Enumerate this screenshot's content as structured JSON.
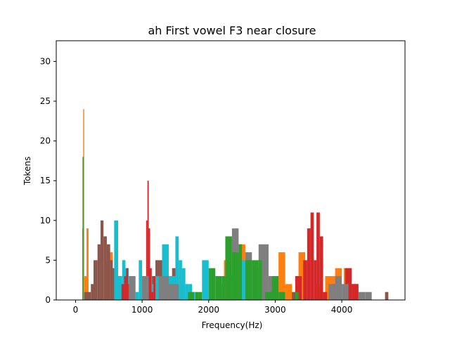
{
  "chart_data": {
    "type": "histogram",
    "title": "ah First vowel F3 near closure",
    "xlabel": "Frequency(Hz)",
    "ylabel": "Tokens",
    "xlim": [
      -290,
      4950
    ],
    "ylim": [
      0,
      32.6
    ],
    "xticks": [
      0,
      1000,
      2000,
      3000,
      4000
    ],
    "yticks": [
      0,
      5,
      10,
      15,
      20,
      25,
      30
    ],
    "grid": false,
    "legend": "none",
    "series": [
      {
        "color": "#ff7f0e",
        "bins": [
          [
            100,
            115,
            9
          ],
          [
            115,
            130,
            24
          ],
          [
            130,
            165,
            3
          ],
          [
            165,
            195,
            9
          ],
          [
            460,
            510,
            5
          ],
          [
            510,
            560,
            6
          ],
          [
            2150,
            2230,
            2
          ],
          [
            2230,
            2300,
            5
          ],
          [
            2450,
            2550,
            7
          ],
          [
            2700,
            2800,
            4
          ],
          [
            2950,
            3050,
            3
          ],
          [
            3050,
            3150,
            6
          ],
          [
            3150,
            3250,
            2
          ],
          [
            3350,
            3450,
            6
          ],
          [
            3600,
            3700,
            2
          ],
          [
            3750,
            3900,
            3
          ],
          [
            3900,
            4000,
            4
          ],
          [
            4030,
            4130,
            4
          ]
        ]
      },
      {
        "color": "#8c564b",
        "bins": [
          [
            130,
            180,
            1
          ],
          [
            180,
            230,
            1
          ],
          [
            230,
            270,
            2
          ],
          [
            270,
            330,
            5
          ],
          [
            330,
            375,
            7
          ],
          [
            375,
            420,
            10
          ],
          [
            420,
            470,
            8
          ],
          [
            470,
            520,
            7
          ],
          [
            520,
            560,
            5
          ],
          [
            560,
            600,
            4
          ],
          [
            600,
            640,
            2
          ],
          [
            640,
            690,
            3
          ],
          [
            690,
            740,
            1
          ],
          [
            1100,
            1200,
            3
          ],
          [
            1200,
            1300,
            5
          ],
          [
            1300,
            1400,
            3
          ],
          [
            1450,
            1550,
            4
          ],
          [
            1550,
            1650,
            2
          ],
          [
            3250,
            3350,
            1
          ],
          [
            4050,
            4150,
            2
          ],
          [
            4150,
            4250,
            2
          ],
          [
            4650,
            4700,
            1
          ]
        ]
      },
      {
        "color": "#17becf",
        "bins": [
          [
            580,
            640,
            10
          ],
          [
            640,
            700,
            3
          ],
          [
            700,
            750,
            5
          ],
          [
            750,
            800,
            4
          ],
          [
            800,
            850,
            2
          ],
          [
            850,
            900,
            3
          ],
          [
            900,
            950,
            1
          ],
          [
            950,
            1000,
            5
          ],
          [
            1000,
            1050,
            3
          ],
          [
            1050,
            1100,
            2
          ],
          [
            1100,
            1150,
            4
          ],
          [
            1150,
            1200,
            2
          ],
          [
            1200,
            1250,
            3
          ],
          [
            1250,
            1300,
            1
          ],
          [
            1300,
            1400,
            7
          ],
          [
            1400,
            1500,
            3
          ],
          [
            1500,
            1550,
            8
          ],
          [
            1550,
            1600,
            5
          ],
          [
            1600,
            1650,
            4
          ],
          [
            1650,
            1700,
            2
          ],
          [
            1700,
            1750,
            2
          ],
          [
            1750,
            1800,
            1
          ],
          [
            1900,
            2000,
            5
          ],
          [
            2300,
            2400,
            3
          ],
          [
            2450,
            2550,
            5
          ]
        ]
      },
      {
        "color": "#d62728",
        "bins": [
          [
            690,
            730,
            2
          ],
          [
            730,
            760,
            3
          ],
          [
            760,
            790,
            4
          ],
          [
            790,
            830,
            2
          ],
          [
            1060,
            1080,
            10
          ],
          [
            1080,
            1100,
            15
          ],
          [
            1100,
            1120,
            9
          ],
          [
            1120,
            1140,
            4
          ],
          [
            1140,
            1170,
            1
          ],
          [
            1170,
            1200,
            3
          ],
          [
            3300,
            3400,
            3
          ],
          [
            3420,
            3480,
            5
          ],
          [
            3480,
            3530,
            9
          ],
          [
            3530,
            3580,
            11
          ],
          [
            3580,
            3620,
            5
          ],
          [
            3620,
            3670,
            11
          ],
          [
            3670,
            3720,
            8
          ],
          [
            3720,
            3780,
            1
          ],
          [
            3850,
            3950,
            2
          ],
          [
            4050,
            4150,
            4
          ],
          [
            4150,
            4250,
            2
          ]
        ]
      },
      {
        "color": "#7f7f7f",
        "bins": [
          [
            800,
            900,
            3
          ],
          [
            1000,
            1100,
            3
          ],
          [
            1250,
            1400,
            3
          ],
          [
            1400,
            1550,
            2
          ],
          [
            2350,
            2450,
            9
          ],
          [
            2550,
            2650,
            6
          ],
          [
            2750,
            2900,
            7
          ],
          [
            2900,
            3000,
            3
          ],
          [
            3800,
            3900,
            2
          ],
          [
            3900,
            4000,
            3
          ],
          [
            4000,
            4100,
            2
          ],
          [
            4250,
            4350,
            1
          ],
          [
            4350,
            4450,
            1
          ]
        ]
      },
      {
        "color": "#2ca02c",
        "bins": [
          [
            105,
            120,
            18
          ],
          [
            1690,
            1780,
            1
          ],
          [
            1800,
            1850,
            1
          ],
          [
            1850,
            1900,
            1
          ],
          [
            2000,
            2100,
            4
          ],
          [
            2100,
            2200,
            3
          ],
          [
            2200,
            2250,
            3
          ],
          [
            2250,
            2350,
            8
          ],
          [
            2350,
            2450,
            6
          ],
          [
            2450,
            2500,
            7
          ],
          [
            2550,
            2650,
            5
          ],
          [
            2650,
            2750,
            5
          ],
          [
            2750,
            2800,
            5
          ],
          [
            2850,
            2950,
            1
          ],
          [
            2950,
            3050,
            3
          ],
          [
            3050,
            3150,
            1
          ],
          [
            3300,
            3350,
            1
          ]
        ]
      }
    ]
  }
}
